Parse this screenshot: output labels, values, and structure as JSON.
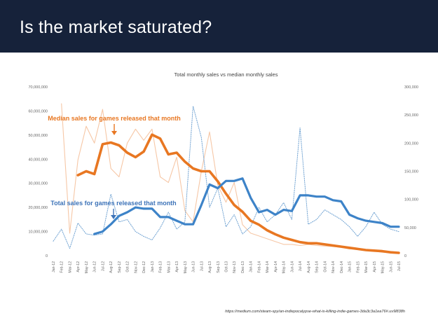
{
  "slide": {
    "title": "Is the market saturated?",
    "source": "https://medium.com/steam-spy/an-indiepocalypse-what-is-killing-indie-games-3da3c3a1ea76#.uv9l838h"
  },
  "colors": {
    "header_bg": "#16223a",
    "median_smooth": "#e87722",
    "median_raw": "#f6c7a6",
    "total_smooth": "#3d83c8",
    "total_raw": "#6fa2d2",
    "median_annotation": "#e87722",
    "total_annotation": "#3d73b8"
  },
  "chart_data": {
    "type": "line",
    "title": "Total monthly sales vs median monthly sales",
    "x": [
      "Jan-12",
      "Feb-12",
      "Mar-12",
      "Apr-12",
      "May-12",
      "Jun-12",
      "Jul-12",
      "Aug-12",
      "Sep-12",
      "Oct-12",
      "Nov-12",
      "Dec-12",
      "Jan-13",
      "Feb-13",
      "Mar-13",
      "Apr-13",
      "May-13",
      "Jun-13",
      "Jul-13",
      "Aug-13",
      "Sep-13",
      "Oct-13",
      "Nov-13",
      "Dec-13",
      "Jan-14",
      "Feb-14",
      "Mar-14",
      "Apr-14",
      "May-14",
      "Jun-14",
      "Jul-14",
      "Aug-14",
      "Sep-14",
      "Oct-14",
      "Nov-14",
      "Dec-14",
      "Jan-15",
      "Feb-15",
      "Mar-15",
      "Apr-15",
      "May-15",
      "Jun-15",
      "Jul-15"
    ],
    "y_left": {
      "ticks": [
        "0",
        "10,000,000",
        "20,000,000",
        "30,000,000",
        "40,000,000",
        "50,000,000",
        "60,000,000",
        "70,000,000"
      ],
      "ylim": [
        0,
        70000000
      ]
    },
    "y_right": {
      "ticks": [
        "0",
        "50,000",
        "100,000",
        "150,000",
        "200,000",
        "250,000",
        "300,000"
      ],
      "ylim": [
        0,
        300000
      ]
    },
    "annotations": {
      "median": "Median sales for games released that month",
      "total": "Total sales for games released that month"
    },
    "series": [
      {
        "axis": "right",
        "style": "raw-median",
        "values": [
          null,
          270000,
          40000,
          170000,
          230000,
          200000,
          260000,
          155000,
          140000,
          200000,
          225000,
          205000,
          225000,
          140000,
          130000,
          175000,
          80000,
          60000,
          150000,
          220000,
          125000,
          95000,
          130000,
          55000,
          40000,
          35000,
          30000,
          25000,
          20000,
          20000,
          18000,
          20000,
          18000,
          17000,
          16000,
          15000,
          12000,
          12000,
          10000,
          8000,
          6000,
          5000,
          4000
        ]
      },
      {
        "axis": "left",
        "style": "raw-total",
        "values": [
          6000000,
          11000000,
          3000000,
          13500000,
          9000000,
          8500000,
          9000000,
          25500000,
          14000000,
          15000000,
          10000000,
          8000000,
          6500000,
          11500000,
          18000000,
          11000000,
          14000000,
          62000000,
          49000000,
          20000000,
          28000000,
          12000000,
          17000000,
          9000000,
          12000000,
          20000000,
          14000000,
          17000000,
          22000000,
          15000000,
          53000000,
          13000000,
          15000000,
          19000000,
          17000000,
          15000000,
          12000000,
          8000000,
          12000000,
          18000000,
          13000000,
          11000000,
          10000000
        ]
      },
      {
        "axis": "right",
        "style": "smooth-median",
        "values": [
          null,
          null,
          null,
          143000,
          150000,
          145000,
          198000,
          201000,
          196000,
          183000,
          175000,
          185000,
          215000,
          208000,
          180000,
          183000,
          167000,
          155000,
          150000,
          150000,
          132000,
          110000,
          90000,
          78000,
          62000,
          55000,
          45000,
          38000,
          32000,
          28000,
          24000,
          22000,
          22000,
          20000,
          18000,
          16000,
          14000,
          12000,
          10000,
          9000,
          8000,
          6000,
          5000
        ]
      },
      {
        "axis": "left",
        "style": "smooth-total",
        "values": [
          null,
          null,
          null,
          null,
          null,
          9000000,
          10000000,
          13000000,
          16500000,
          18000000,
          20000000,
          19500000,
          19500000,
          16000000,
          16000000,
          14500000,
          13000000,
          13000000,
          21000000,
          29500000,
          28000000,
          31000000,
          31000000,
          32000000,
          24000000,
          18000000,
          19000000,
          17000000,
          19000000,
          18500000,
          25000000,
          25000000,
          24500000,
          24500000,
          23000000,
          22500000,
          17000000,
          15500000,
          14500000,
          14000000,
          13500000,
          12000000,
          12000000
        ]
      }
    ],
    "grid": false,
    "legend": "none"
  }
}
